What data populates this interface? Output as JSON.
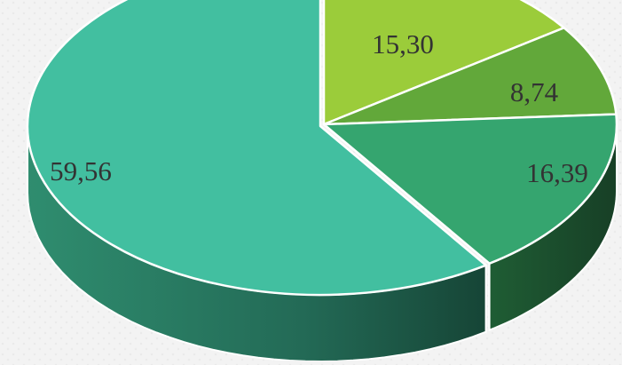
{
  "chart_data": {
    "type": "pie",
    "style": "3d-exploded",
    "labels": [
      "15,30",
      "8,74",
      "16,39",
      "59,56"
    ],
    "values": [
      15.3,
      8.74,
      16.39,
      59.56
    ],
    "colors": [
      "#9bcc3a",
      "#62a83a",
      "#35a56f",
      "#42bfa0"
    ],
    "grid": false,
    "legend": "none"
  }
}
